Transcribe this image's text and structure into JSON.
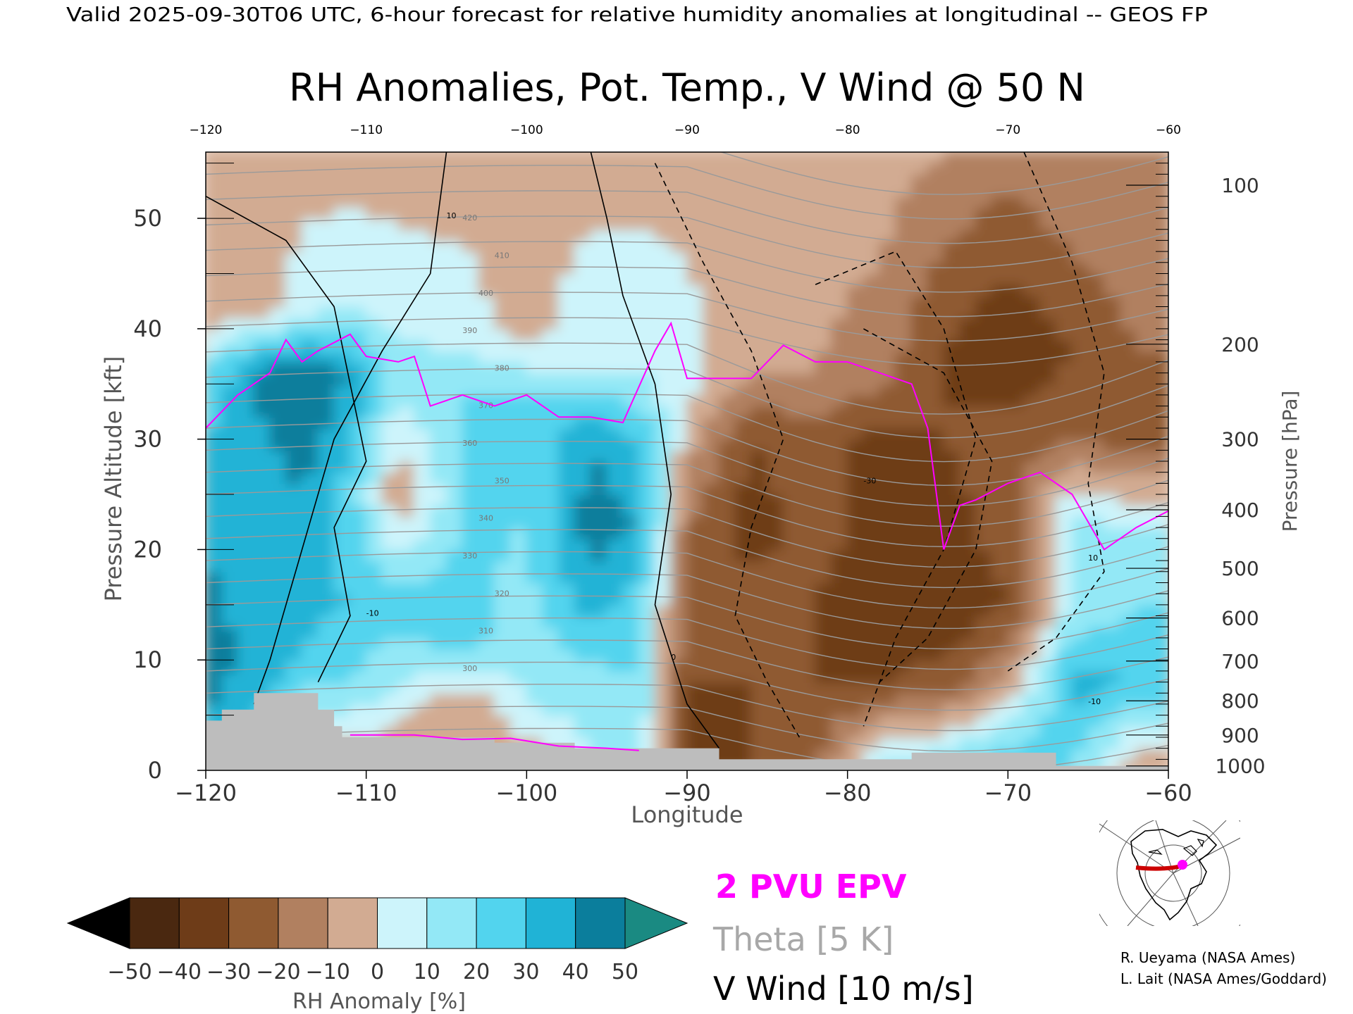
{
  "header": {
    "valid_line": "Valid 2025-09-30T06 UTC, 6-hour forecast for relative humidity anomalies at longitudinal -- GEOS FP",
    "title": "RH Anomalies, Pot. Temp., V Wind @ 50 N"
  },
  "chart_data": {
    "type": "heatmap",
    "title": "RH Anomalies, Pot. Temp., V Wind @ 50 N",
    "xlabel": "Longitude",
    "ylabel": "Pressure Altitude [kft]",
    "y2label": "Pressure [hPa]",
    "xlim": [
      -120,
      -60
    ],
    "ylim": [
      0,
      56
    ],
    "x_ticks": [
      -120,
      -110,
      -100,
      -90,
      -80,
      -70,
      -60
    ],
    "x_tick_labels": [
      "−120",
      "−110",
      "−100",
      "−90",
      "−80",
      "−70",
      "−60"
    ],
    "x_top_tick_labels": [
      "−120",
      "−110",
      "−100",
      "−90",
      "−80",
      "−70",
      "−60"
    ],
    "y_ticks": [
      0,
      10,
      20,
      30,
      40,
      50
    ],
    "y_tick_labels": [
      "0",
      "10",
      "20",
      "30",
      "40",
      "50"
    ],
    "pressure_ticks": [
      {
        "hpa": "100",
        "kft": 53.0
      },
      {
        "hpa": "200",
        "kft": 38.6
      },
      {
        "hpa": "300",
        "kft": 30.0
      },
      {
        "hpa": "400",
        "kft": 23.6
      },
      {
        "hpa": "500",
        "kft": 18.3
      },
      {
        "hpa": "600",
        "kft": 13.8
      },
      {
        "hpa": "700",
        "kft": 9.9
      },
      {
        "hpa": "800",
        "kft": 6.3
      },
      {
        "hpa": "900",
        "kft": 3.2
      },
      {
        "hpa": "1000",
        "kft": 0.4
      }
    ],
    "colorbar": {
      "label": "RH Anomaly [%]",
      "levels": [
        -50,
        -40,
        -30,
        -20,
        -10,
        0,
        10,
        20,
        30,
        40,
        50
      ],
      "tick_labels": [
        "−50",
        "−40",
        "−30",
        "−20",
        "−10",
        "0",
        "10",
        "20",
        "30",
        "40",
        "50"
      ],
      "colors": [
        "#4a2810",
        "#6e3c18",
        "#8f5a31",
        "#b18060",
        "#d2ab92",
        "#ebd8cc",
        "#cdf4fb",
        "#93e8f6",
        "#52d4ee",
        "#20b3d6",
        "#0b7e9c"
      ],
      "under_color": "#000000",
      "over_color": "#1a8a82"
    },
    "rh_anomaly_columns": [
      {
        "lon": -120,
        "profile": [
          [
            0,
            35
          ],
          [
            10,
            45
          ],
          [
            20,
            40
          ],
          [
            30,
            30
          ],
          [
            36,
            20
          ],
          [
            42,
            -10
          ],
          [
            56,
            -5
          ]
        ]
      },
      {
        "lon": -116,
        "profile": [
          [
            0,
            20
          ],
          [
            10,
            35
          ],
          [
            20,
            30
          ],
          [
            30,
            40
          ],
          [
            36,
            45
          ],
          [
            42,
            -5
          ],
          [
            56,
            -5
          ]
        ]
      },
      {
        "lon": -114,
        "profile": [
          [
            0,
            -10
          ],
          [
            10,
            30
          ],
          [
            20,
            35
          ],
          [
            30,
            45
          ],
          [
            36,
            50
          ],
          [
            42,
            5
          ],
          [
            56,
            -5
          ]
        ]
      },
      {
        "lon": -111,
        "profile": [
          [
            0,
            -10
          ],
          [
            8,
            20
          ],
          [
            15,
            30
          ],
          [
            25,
            25
          ],
          [
            36,
            40
          ],
          [
            42,
            10
          ],
          [
            56,
            -5
          ]
        ]
      },
      {
        "lon": -108,
        "profile": [
          [
            0,
            -10
          ],
          [
            8,
            10
          ],
          [
            15,
            25
          ],
          [
            25,
            -10
          ],
          [
            36,
            15
          ],
          [
            42,
            5
          ],
          [
            56,
            -5
          ]
        ]
      },
      {
        "lon": -104,
        "profile": [
          [
            0,
            -10
          ],
          [
            6,
            -10
          ],
          [
            12,
            25
          ],
          [
            25,
            20
          ],
          [
            34,
            20
          ],
          [
            40,
            5
          ],
          [
            56,
            -5
          ]
        ]
      },
      {
        "lon": -100,
        "profile": [
          [
            0,
            -10
          ],
          [
            6,
            10
          ],
          [
            12,
            15
          ],
          [
            22,
            20
          ],
          [
            34,
            20
          ],
          [
            40,
            -5
          ],
          [
            56,
            -5
          ]
        ]
      },
      {
        "lon": -96,
        "profile": [
          [
            0,
            10
          ],
          [
            8,
            15
          ],
          [
            15,
            35
          ],
          [
            22,
            45
          ],
          [
            30,
            40
          ],
          [
            36,
            10
          ],
          [
            56,
            -5
          ]
        ]
      },
      {
        "lon": -93,
        "profile": [
          [
            0,
            15
          ],
          [
            8,
            20
          ],
          [
            15,
            25
          ],
          [
            22,
            40
          ],
          [
            30,
            30
          ],
          [
            36,
            10
          ],
          [
            56,
            -5
          ]
        ]
      },
      {
        "lon": -90,
        "profile": [
          [
            0,
            -35
          ],
          [
            8,
            -30
          ],
          [
            15,
            -25
          ],
          [
            22,
            -20
          ],
          [
            30,
            -5
          ],
          [
            36,
            5
          ],
          [
            56,
            -5
          ]
        ]
      },
      {
        "lon": -86,
        "profile": [
          [
            0,
            -30
          ],
          [
            8,
            -30
          ],
          [
            15,
            -25
          ],
          [
            22,
            -35
          ],
          [
            30,
            -30
          ],
          [
            36,
            -10
          ],
          [
            56,
            -5
          ]
        ]
      },
      {
        "lon": -82,
        "profile": [
          [
            0,
            -20
          ],
          [
            8,
            -30
          ],
          [
            15,
            -30
          ],
          [
            22,
            -25
          ],
          [
            30,
            -25
          ],
          [
            36,
            -10
          ],
          [
            56,
            -5
          ]
        ]
      },
      {
        "lon": -78,
        "profile": [
          [
            0,
            15
          ],
          [
            8,
            -30
          ],
          [
            15,
            -40
          ],
          [
            22,
            -35
          ],
          [
            30,
            -35
          ],
          [
            36,
            -15
          ],
          [
            56,
            -5
          ]
        ]
      },
      {
        "lon": -74,
        "profile": [
          [
            0,
            20
          ],
          [
            8,
            -25
          ],
          [
            15,
            -40
          ],
          [
            22,
            -35
          ],
          [
            30,
            -30
          ],
          [
            38,
            -30
          ],
          [
            56,
            -10
          ]
        ]
      },
      {
        "lon": -70,
        "profile": [
          [
            0,
            30
          ],
          [
            8,
            -10
          ],
          [
            15,
            -30
          ],
          [
            22,
            -25
          ],
          [
            30,
            -25
          ],
          [
            38,
            -40
          ],
          [
            56,
            -15
          ]
        ]
      },
      {
        "lon": -66,
        "profile": [
          [
            0,
            20
          ],
          [
            8,
            35
          ],
          [
            15,
            10
          ],
          [
            22,
            15
          ],
          [
            30,
            -20
          ],
          [
            38,
            -30
          ],
          [
            56,
            -10
          ]
        ]
      },
      {
        "lon": -62,
        "profile": [
          [
            0,
            -10
          ],
          [
            8,
            30
          ],
          [
            15,
            20
          ],
          [
            22,
            10
          ],
          [
            30,
            -25
          ],
          [
            38,
            -20
          ],
          [
            56,
            -10
          ]
        ]
      },
      {
        "lon": -60,
        "profile": [
          [
            0,
            -10
          ],
          [
            8,
            30
          ],
          [
            15,
            20
          ],
          [
            22,
            10
          ],
          [
            30,
            -25
          ],
          [
            38,
            -20
          ],
          [
            56,
            -10
          ]
        ]
      }
    ],
    "epv_2pvu_line": {
      "label": "2 PVU EPV",
      "color": "#ff00ff",
      "lon": [
        -120,
        -118,
        -116,
        -115,
        -114,
        -113,
        -111,
        -110,
        -108,
        -107,
        -106,
        -104,
        -102,
        -100,
        -98,
        -96,
        -94,
        -92,
        -91,
        -90,
        -88,
        -86,
        -84,
        -82,
        -80,
        -78,
        -76,
        -75,
        -74,
        -73,
        -72,
        -70,
        -68,
        -66,
        -64,
        -63,
        -62,
        -60
      ],
      "kft": [
        31,
        34,
        36,
        39,
        37,
        38,
        39.5,
        37.5,
        37,
        37.5,
        33,
        34,
        33,
        34,
        32,
        32,
        31.5,
        38,
        40.5,
        35.5,
        35.5,
        35.5,
        38.5,
        37,
        37,
        36,
        35,
        31,
        20,
        24,
        24.5,
        26,
        27,
        25,
        20,
        21,
        22,
        23.5
      ]
    },
    "theta_contours": {
      "label": "Theta [5 K]",
      "color": "#999999",
      "levels_K": [
        300,
        310,
        320,
        330,
        340,
        350,
        360,
        370,
        380,
        390,
        400,
        410,
        420
      ],
      "labeled_values": [
        "300",
        "310",
        "320",
        "330",
        "340",
        "350",
        "360",
        "370",
        "380",
        "390",
        "400",
        "410",
        "420"
      ]
    },
    "v_wind_contours": {
      "label": "V Wind [10 m/s]",
      "color": "#000000",
      "labeled_values": [
        "0",
        "10",
        "-10",
        "-30",
        "10",
        "-10"
      ]
    },
    "terrain_color": "#bdbdbd"
  },
  "legend": {
    "epv_label": "2 PVU EPV",
    "epv_color": "#ff00ff",
    "theta_label": "Theta [5 K]",
    "theta_color": "#a8a8a8",
    "wind_label": "V Wind [10 m/s]"
  },
  "credits": {
    "line1": "R. Ueyama (NASA Ames)",
    "line2": "L. Lait (NASA Ames/Goddard)"
  },
  "inset_map": {
    "marker_color": "#ff00ff",
    "line_color": "#cc0000"
  }
}
